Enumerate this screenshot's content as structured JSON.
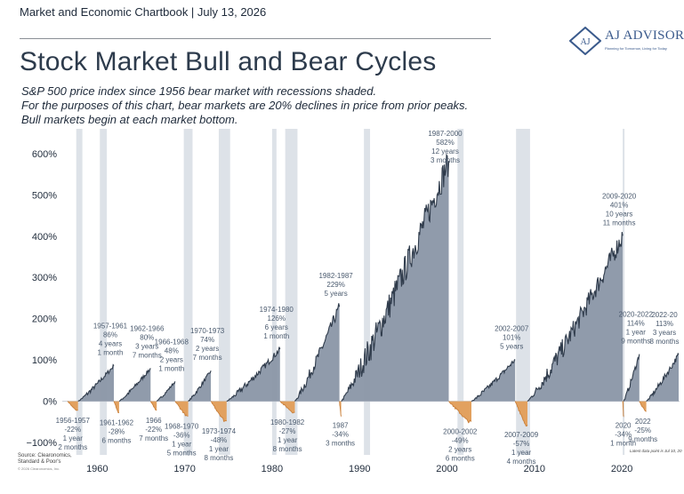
{
  "header": {
    "report": "Market and Economic Chartbook | July 13, 2026",
    "title": "Stock Market Bull and Bear Cycles",
    "subtitle_lines": [
      "S&P 500 price index since 1956 bear market with recessions shaded.",
      "For the purposes of this chart, bear markets are 20% declines in price from prior peaks.",
      "Bull markets begin at each market bottom."
    ]
  },
  "logo": {
    "name": "AJ ADVISORS",
    "tagline": "Planning for Tomorrow, Living for Today",
    "color": "#3a5a8c"
  },
  "source": "Source: Clearonomics, Standard & Poor's",
  "copyright": "© 2026 Clearonomics, Inc.",
  "footnote": "Latest data point is Jul 10, 20",
  "colors": {
    "bull": "#8a96a6",
    "bull_line": "#2f3b4b",
    "bear": "#e2a15f",
    "recession": "#dde2e8",
    "axis_text": "#1e2a3a",
    "label_text": "#4a5a6e"
  },
  "chart_data": {
    "type": "area",
    "xlim": [
      1956,
      2026.6
    ],
    "ylim": [
      -130,
      660
    ],
    "y_ticks": [
      600,
      500,
      400,
      300,
      200,
      100,
      0,
      -100
    ],
    "y_tick_labels": [
      "600%",
      "500%",
      "400%",
      "300%",
      "200%",
      "100%",
      "0%",
      "−100%"
    ],
    "x_ticks": [
      1960,
      1970,
      1980,
      1990,
      2000,
      2010,
      2020
    ],
    "x_tick_labels": [
      "1960",
      "1970",
      "1980",
      "1990",
      "2000",
      "2010",
      "2020"
    ],
    "recessions": [
      [
        1957.6,
        1958.3
      ],
      [
        1960.3,
        1961.1
      ],
      [
        1969.9,
        1970.9
      ],
      [
        1973.9,
        1975.2
      ],
      [
        1980.0,
        1980.5
      ],
      [
        1981.5,
        1982.9
      ],
      [
        1990.5,
        1991.2
      ],
      [
        2001.2,
        2001.9
      ],
      [
        2007.9,
        2009.5
      ],
      [
        2020.1,
        2020.3
      ]
    ],
    "bull_markets": [
      {
        "label": [
          "1957-1961",
          "86%",
          "4 years",
          "1 month"
        ],
        "start": 1957.8,
        "end": 1961.9,
        "gain": 86
      },
      {
        "label": [
          "1962-1966",
          "80%",
          "3 years",
          "7 months"
        ],
        "start": 1962.5,
        "end": 1966.1,
        "gain": 80
      },
      {
        "label": [
          "1966-1968",
          "48%",
          "2 years",
          "1 month"
        ],
        "start": 1966.8,
        "end": 1968.9,
        "gain": 48
      },
      {
        "label": [
          "1970-1973",
          "74%",
          "2 years",
          "7 months"
        ],
        "start": 1970.4,
        "end": 1973.0,
        "gain": 74
      },
      {
        "label": [
          "1974-1980",
          "126%",
          "6 years",
          "1 month"
        ],
        "start": 1974.8,
        "end": 1980.9,
        "gain": 126
      },
      {
        "label": [
          "1982-1987",
          "229%",
          "5 years"
        ],
        "start": 1982.6,
        "end": 1987.7,
        "gain": 229
      },
      {
        "label": [
          "1987-2000",
          "582%",
          "12 years",
          "3 months"
        ],
        "start": 1987.9,
        "end": 2000.2,
        "gain": 582
      },
      {
        "label": [
          "2002-2007",
          "101%",
          "5 years"
        ],
        "start": 2002.8,
        "end": 2007.8,
        "gain": 101
      },
      {
        "label": [
          "2009-2020",
          "401%",
          "10 years",
          "11 months"
        ],
        "start": 2009.2,
        "end": 2020.1,
        "gain": 401
      },
      {
        "label": [
          "2020-2022",
          "114%",
          "1 year",
          "9 months"
        ],
        "start": 2020.2,
        "end": 2022.0,
        "gain": 114
      },
      {
        "label": [
          "2022-20",
          "113%",
          "3 years",
          "8 months"
        ],
        "start": 2022.8,
        "end": 2026.5,
        "gain": 113
      }
    ],
    "bear_markets": [
      {
        "label": [
          "1956-1957",
          "-22%",
          "1 year",
          "2 months"
        ],
        "start": 1956.6,
        "end": 1957.8,
        "decline": -22
      },
      {
        "label": [
          "1961-1962",
          "-28%",
          "6 months"
        ],
        "start": 1961.9,
        "end": 1962.5,
        "decline": -28
      },
      {
        "label": [
          "1966",
          "-22%",
          "7 months"
        ],
        "start": 1966.1,
        "end": 1966.8,
        "decline": -22
      },
      {
        "label": [
          "1968-1970",
          "-36%",
          "1 year",
          "5 months"
        ],
        "start": 1968.9,
        "end": 1970.4,
        "decline": -36
      },
      {
        "label": [
          "1973-1974",
          "-48%",
          "1 year",
          "8 months"
        ],
        "start": 1973.0,
        "end": 1974.8,
        "decline": -48
      },
      {
        "label": [
          "1980-1982",
          "-27%",
          "1 year",
          "8 months"
        ],
        "start": 1980.9,
        "end": 1982.6,
        "decline": -27
      },
      {
        "label": [
          "1987",
          "-34%",
          "3 months"
        ],
        "start": 1987.7,
        "end": 1987.9,
        "decline": -34
      },
      {
        "label": [
          "2000-2002",
          "-49%",
          "2 years",
          "6 months"
        ],
        "start": 2000.2,
        "end": 2002.8,
        "decline": -49
      },
      {
        "label": [
          "2007-2009",
          "-57%",
          "1 year",
          "4 months"
        ],
        "start": 2007.8,
        "end": 2009.2,
        "decline": -57
      },
      {
        "label": [
          "2020",
          "-34%",
          "1 month"
        ],
        "start": 2020.1,
        "end": 2020.2,
        "decline": -34
      },
      {
        "label": [
          "2022",
          "-25%",
          "9 months"
        ],
        "start": 2022.0,
        "end": 2022.8,
        "decline": -25
      }
    ]
  }
}
